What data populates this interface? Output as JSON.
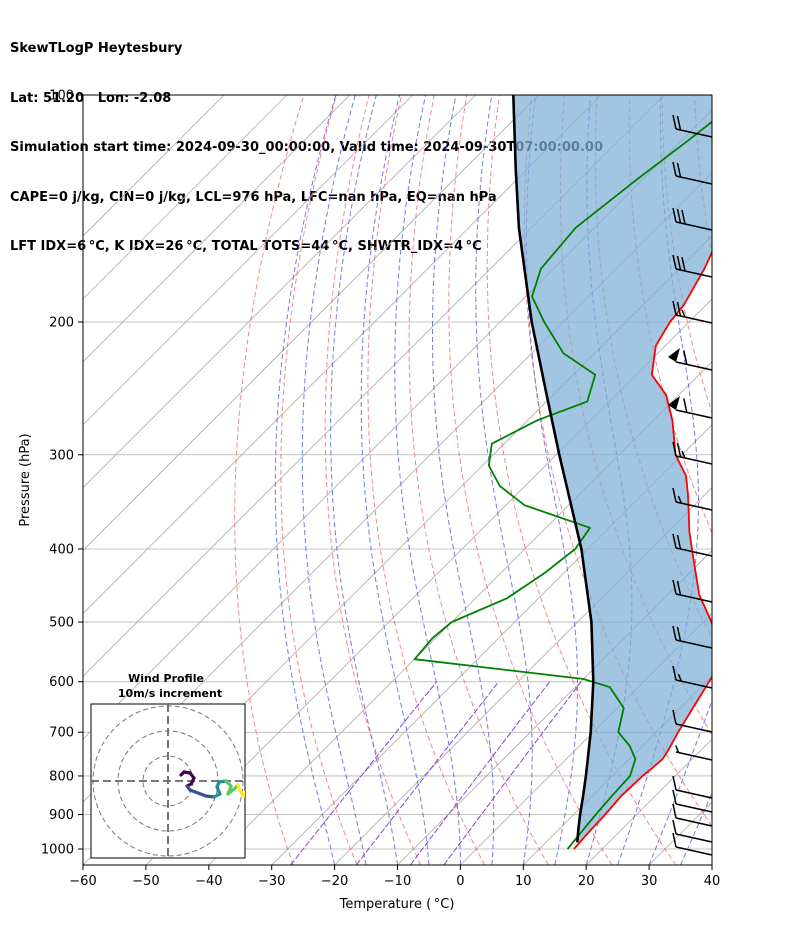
{
  "header": {
    "line1": "SkewTLogP Heytesbury",
    "line2": "Lat: 51.20   Lon: -2.08",
    "line3": "Simulation start time: 2024-09-30_00:00:00, Valid time: 2024-09-30T07:00:00.00",
    "line4": "CAPE=0 j/kg, CIN=0 j/kg, LCL=976 hPa, LFC=nan hPa, EQ=nan hPa",
    "line5": "LFT IDX=6 °C, K IDX=26 °C, TOTAL TOTS=44 °C, SHWTR_IDX=4 °C"
  },
  "chart_data": {
    "type": "line",
    "xlabel": "Temperature ( °C)",
    "ylabel": "Pressure (hPa)",
    "xlim": [
      -60,
      40
    ],
    "ylim": [
      1050,
      100
    ],
    "y_scale": "log",
    "x_ticks": [
      -60,
      -50,
      -40,
      -30,
      -20,
      -10,
      0,
      10,
      20,
      30,
      40
    ],
    "x_tick_labels": [
      "−60",
      "−50",
      "−40",
      "−30",
      "−20",
      "−10",
      "0",
      "10",
      "20",
      "30",
      "40"
    ],
    "y_ticks": [
      100,
      200,
      300,
      400,
      500,
      600,
      700,
      800,
      900,
      1000
    ],
    "y_tick_labels": [
      "100",
      "200",
      "300",
      "400",
      "500",
      "600",
      "700",
      "800",
      "900",
      "1000"
    ],
    "grid": true,
    "skew": true,
    "colors": {
      "temperature": "#ff0000",
      "dewpoint": "#008000",
      "parcel": "#000000",
      "cape_fill": "#7eb0d5",
      "dry_adiabats": "#f06060",
      "moist_adiabats": "#4c5ae8",
      "mixing_ratio": "#8844cc",
      "isotherms": "#aaaaaa",
      "grid": "#b0b0b0"
    },
    "series": [
      {
        "key": "temperature",
        "points": [
          [
            1000,
            15.5
          ],
          [
            950,
            15.2
          ],
          [
            900,
            15.0
          ],
          [
            850,
            14.6
          ],
          [
            800,
            14.8
          ],
          [
            780,
            15.1
          ],
          [
            760,
            15.3
          ],
          [
            740,
            14.8
          ],
          [
            700,
            13.5
          ],
          [
            650,
            12.0
          ],
          [
            600,
            10.4
          ],
          [
            560,
            9.0
          ],
          [
            550,
            7.6
          ],
          [
            500,
            1.3
          ],
          [
            460,
            -5.0
          ],
          [
            420,
            -10.5
          ],
          [
            380,
            -16.5
          ],
          [
            340,
            -22.5
          ],
          [
            320,
            -26.0
          ],
          [
            300,
            -31.0
          ],
          [
            270,
            -37.0
          ],
          [
            250,
            -42.0
          ],
          [
            235,
            -47.5
          ],
          [
            215,
            -51.5
          ],
          [
            200,
            -53.0
          ],
          [
            190,
            -53.5
          ],
          [
            170,
            -56.0
          ],
          [
            150,
            -59.5
          ],
          [
            130,
            -62.0
          ],
          [
            115,
            -66.0
          ],
          [
            105,
            -68.0
          ],
          [
            100,
            -70.0
          ]
        ]
      },
      {
        "key": "dewpoint",
        "points": [
          [
            1000,
            14.5
          ],
          [
            950,
            14.0
          ],
          [
            900,
            13.5
          ],
          [
            850,
            13.1
          ],
          [
            800,
            12.8
          ],
          [
            760,
            11.0
          ],
          [
            730,
            8.0
          ],
          [
            700,
            4.0
          ],
          [
            650,
            1.0
          ],
          [
            610,
            -4.5
          ],
          [
            595,
            -10.0
          ],
          [
            560,
            -40.0
          ],
          [
            525,
            -40.5
          ],
          [
            500,
            -40.0
          ],
          [
            465,
            -35.0
          ],
          [
            430,
            -33.0
          ],
          [
            400,
            -32.0
          ],
          [
            375,
            -33.0
          ],
          [
            350,
            -47.0
          ],
          [
            330,
            -54.0
          ],
          [
            310,
            -59.0
          ],
          [
            290,
            -62.0
          ],
          [
            270,
            -58.5
          ],
          [
            255,
            -53.5
          ],
          [
            235,
            -56.5
          ],
          [
            220,
            -65.0
          ],
          [
            200,
            -73.0
          ],
          [
            185,
            -79.0
          ],
          [
            170,
            -82.0
          ],
          [
            150,
            -83.0
          ],
          [
            130,
            -81.0
          ],
          [
            115,
            -79.0
          ],
          [
            100,
            -77.0
          ]
        ]
      },
      {
        "key": "parcel",
        "points": [
          [
            980,
            15.0
          ],
          [
            940,
            13.0
          ],
          [
            900,
            11.0
          ],
          [
            850,
            8.5
          ],
          [
            800,
            5.8
          ],
          [
            700,
            -0.4
          ],
          [
            600,
            -8.0
          ],
          [
            500,
            -17.8
          ],
          [
            400,
            -31.0
          ],
          [
            300,
            -49.5
          ],
          [
            250,
            -61.0
          ],
          [
            200,
            -75.0
          ],
          [
            150,
            -92.0
          ],
          [
            125,
            -102.0
          ],
          [
            100,
            -114.0
          ]
        ]
      }
    ],
    "inset": {
      "title": "Wind Profile",
      "subtitle": "10m/s increment"
    }
  }
}
